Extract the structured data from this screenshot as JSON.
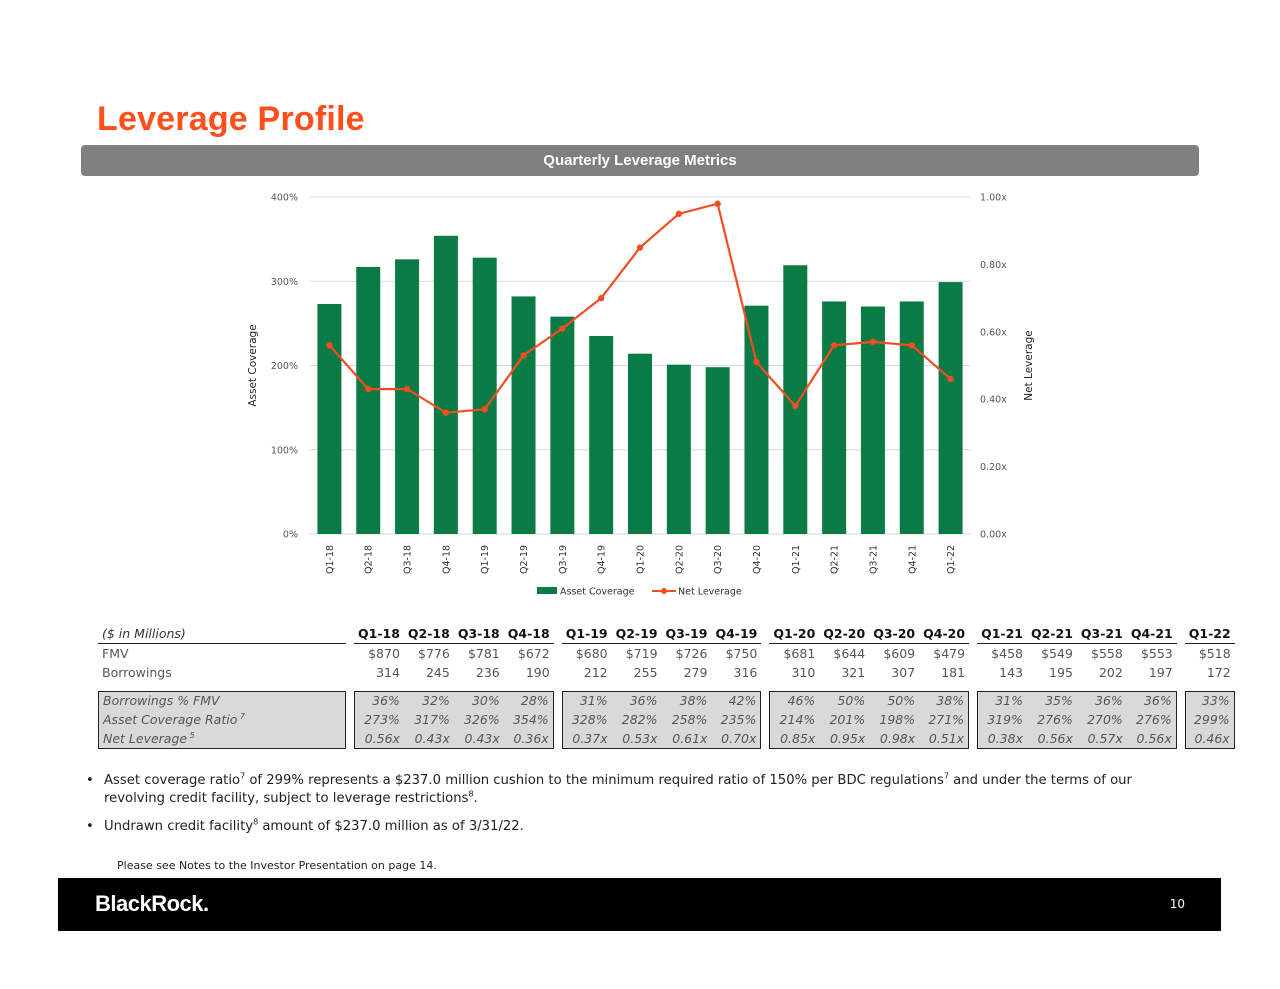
{
  "page": {
    "title": "Leverage Profile",
    "banner": "Quarterly Leverage Metrics",
    "note": "Please see Notes to the Investor Presentation on page 14.",
    "page_number": "10",
    "logo": "BlackRock."
  },
  "colors": {
    "title": "#ff4f1a",
    "bar": "#0b7b46",
    "line": "#f04e23",
    "banner": "#7f7f7f"
  },
  "chart_data": {
    "type": "bar",
    "categories": [
      "Q1-18",
      "Q2-18",
      "Q3-18",
      "Q4-18",
      "Q1-19",
      "Q2-19",
      "Q3-19",
      "Q4-19",
      "Q1-20",
      "Q2-20",
      "Q3-20",
      "Q4-20",
      "Q1-21",
      "Q2-21",
      "Q3-21",
      "Q4-21",
      "Q1-22"
    ],
    "series": [
      {
        "name": "Asset Coverage",
        "type": "bar",
        "axis": "left",
        "values": [
          273,
          317,
          326,
          354,
          328,
          282,
          258,
          235,
          214,
          201,
          198,
          271,
          319,
          276,
          270,
          276,
          299
        ]
      },
      {
        "name": "Net Leverage",
        "type": "line",
        "axis": "right",
        "values": [
          0.56,
          0.43,
          0.43,
          0.36,
          0.37,
          0.53,
          0.61,
          0.7,
          0.85,
          0.95,
          0.98,
          0.51,
          0.38,
          0.56,
          0.57,
          0.56,
          0.46
        ]
      }
    ],
    "ylabel": "Asset Coverage",
    "y2label": "Net Leverage",
    "ylim": [
      0,
      400
    ],
    "y2lim": [
      0,
      1.0
    ],
    "yticks": [
      "0%",
      "100%",
      "200%",
      "300%",
      "400%"
    ],
    "y2ticks": [
      "0.00x",
      "0.20x",
      "0.40x",
      "0.60x",
      "0.80x",
      "1.00x"
    ],
    "legend": [
      "Asset Coverage",
      "Net Leverage"
    ],
    "legend_position": "bottom",
    "grid": true
  },
  "table": {
    "header_label": "($ in Millions)",
    "groups": [
      [
        "Q1-18",
        "Q2-18",
        "Q3-18",
        "Q4-18"
      ],
      [
        "Q1-19",
        "Q2-19",
        "Q3-19",
        "Q4-19"
      ],
      [
        "Q1-20",
        "Q2-20",
        "Q3-20",
        "Q4-20"
      ],
      [
        "Q1-21",
        "Q2-21",
        "Q3-21",
        "Q4-21"
      ],
      [
        "Q1-22"
      ]
    ],
    "fmv": {
      "label": "FMV",
      "values": [
        "$870",
        "$776",
        "$781",
        "$672",
        "$680",
        "$719",
        "$726",
        "$750",
        "$681",
        "$644",
        "$609",
        "$479",
        "$458",
        "$549",
        "$558",
        "$553",
        "$518"
      ]
    },
    "borrowings": {
      "label": "Borrowings",
      "values": [
        "314",
        "245",
        "236",
        "190",
        "212",
        "255",
        "279",
        "316",
        "310",
        "321",
        "307",
        "181",
        "143",
        "195",
        "202",
        "197",
        "172"
      ]
    },
    "borrowings_pct": {
      "label": "Borrowings % FMV",
      "sup": "",
      "values": [
        "36%",
        "32%",
        "30%",
        "28%",
        "31%",
        "36%",
        "38%",
        "42%",
        "46%",
        "50%",
        "50%",
        "38%",
        "31%",
        "35%",
        "36%",
        "36%",
        "33%"
      ]
    },
    "asset_coverage": {
      "label": "Asset Coverage Ratio",
      "sup": "7",
      "values": [
        "273%",
        "317%",
        "326%",
        "354%",
        "328%",
        "282%",
        "258%",
        "235%",
        "214%",
        "201%",
        "198%",
        "271%",
        "319%",
        "276%",
        "270%",
        "276%",
        "299%"
      ]
    },
    "net_leverage": {
      "label": "Net Leverage",
      "sup": "5",
      "values": [
        "0.56x",
        "0.43x",
        "0.43x",
        "0.36x",
        "0.37x",
        "0.53x",
        "0.61x",
        "0.70x",
        "0.85x",
        "0.95x",
        "0.98x",
        "0.51x",
        "0.38x",
        "0.56x",
        "0.57x",
        "0.56x",
        "0.46x"
      ]
    }
  },
  "bullets": [
    {
      "parts": [
        "Asset coverage ratio",
        "7",
        " of 299% represents a $237.0 million cushion to the minimum required ratio of 150% per BDC regulations",
        "7",
        " and under the terms of our revolving credit facility, subject to leverage restrictions",
        "8",
        "."
      ]
    },
    {
      "parts": [
        "Undrawn credit facility",
        "8",
        " amount of $237.0 million as of 3/31/22."
      ]
    }
  ]
}
